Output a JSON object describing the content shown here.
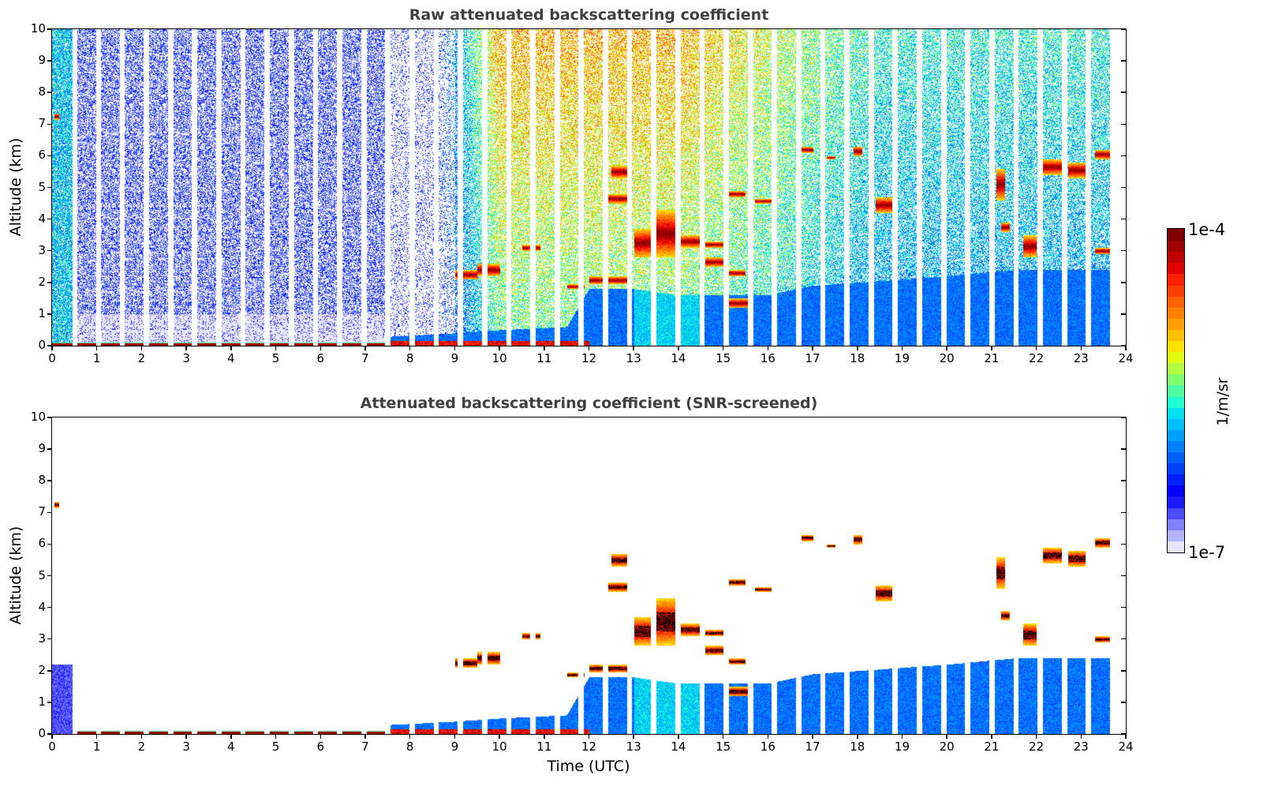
{
  "figure": {
    "panels": [
      {
        "id": "raw",
        "title": "Raw attenuated backscattering coefficient",
        "ylabel": "Altitude (km)",
        "xlabel": ""
      },
      {
        "id": "snr",
        "title": "Attenuated backscattering coefficient (SNR-screened)",
        "ylabel": "Altitude (km)",
        "xlabel": "Time (UTC)"
      }
    ],
    "colorbar": {
      "label": "1/m/sr",
      "max_label": "1e-4",
      "min_label": "1e-7",
      "colormap": "jet (with light-lavender low end)",
      "colors": [
        "#e6e6fa",
        "#b3b3ff",
        "#8080ff",
        "#4d4dff",
        "#1a1aff",
        "#0000ff",
        "#0020ff",
        "#0040ff",
        "#0060ff",
        "#0080ff",
        "#00a0ff",
        "#00c0ff",
        "#00e0f0",
        "#20ffd0",
        "#50ffa0",
        "#80ff70",
        "#b0ff40",
        "#e0ff10",
        "#ffe000",
        "#ffc000",
        "#ffa000",
        "#ff8000",
        "#ff6000",
        "#ff4000",
        "#ff2000",
        "#e00000",
        "#c00000",
        "#a00000",
        "#800000"
      ]
    }
  },
  "chart_data": [
    {
      "type": "heatmap",
      "title": "Raw attenuated backscattering coefficient",
      "xlabel": "",
      "ylabel": "Altitude (km)",
      "xlim": [
        0,
        24
      ],
      "ylim": [
        0,
        10
      ],
      "x_ticks": [
        "0",
        "1",
        "2",
        "3",
        "4",
        "5",
        "6",
        "7",
        "8",
        "9",
        "10",
        "11",
        "12",
        "13",
        "14",
        "15",
        "16",
        "17",
        "18",
        "19",
        "20",
        "21",
        "22",
        "23",
        "24"
      ],
      "y_ticks": [
        "0",
        "1",
        "2",
        "3",
        "4",
        "5",
        "6",
        "7",
        "8",
        "9",
        "10"
      ],
      "color_scale": {
        "min": 1e-07,
        "max": 0.0001,
        "scale": "log",
        "units": "1/m/sr"
      },
      "grid": false,
      "screened": false
    },
    {
      "type": "heatmap",
      "title": "Attenuated backscattering coefficient (SNR-screened)",
      "xlabel": "Time (UTC)",
      "ylabel": "Altitude (km)",
      "xlim": [
        0,
        24
      ],
      "ylim": [
        0,
        10
      ],
      "x_ticks": [
        "0",
        "1",
        "2",
        "3",
        "4",
        "5",
        "6",
        "7",
        "8",
        "9",
        "10",
        "11",
        "12",
        "13",
        "14",
        "15",
        "16",
        "17",
        "18",
        "19",
        "20",
        "21",
        "22",
        "23",
        "24"
      ],
      "y_ticks": [
        "0",
        "1",
        "2",
        "3",
        "4",
        "5",
        "6",
        "7",
        "8",
        "9",
        "10"
      ],
      "color_scale": {
        "min": 1e-07,
        "max": 0.0001,
        "scale": "log",
        "units": "1/m/sr"
      },
      "grid": false,
      "screened": true
    }
  ],
  "observations": {
    "first_block_hours": [
      0.0,
      0.45
    ],
    "block_start_hours": [
      0.55,
      1.08,
      1.62,
      2.16,
      2.7,
      3.24,
      3.78,
      4.32,
      4.86,
      5.4,
      5.94,
      6.48,
      7.02,
      7.56,
      8.1,
      8.64,
      9.18,
      9.72,
      10.26,
      10.8,
      11.34,
      11.88,
      12.42,
      12.96,
      13.5,
      14.04,
      14.58,
      15.12,
      15.66,
      16.2,
      16.74,
      17.28,
      17.82,
      18.36,
      18.9,
      19.44,
      19.98,
      20.52,
      21.06,
      21.6,
      22.14,
      22.68,
      23.22
    ],
    "block_length_hours": 0.42,
    "boundary_layer_top_km": [
      {
        "t": 0,
        "h": 0.1
      },
      {
        "t": 7,
        "h": 0.15
      },
      {
        "t": 7.6,
        "h": 0.3
      },
      {
        "t": 9,
        "h": 0.4
      },
      {
        "t": 10,
        "h": 0.5
      },
      {
        "t": 11.5,
        "h": 0.6
      },
      {
        "t": 12,
        "h": 1.8
      },
      {
        "t": 13,
        "h": 1.8
      },
      {
        "t": 14,
        "h": 1.6
      },
      {
        "t": 16,
        "h": 1.6
      },
      {
        "t": 17,
        "h": 1.9
      },
      {
        "t": 18,
        "h": 2.0
      },
      {
        "t": 20,
        "h": 2.2
      },
      {
        "t": 21.5,
        "h": 2.4
      },
      {
        "t": 23.7,
        "h": 2.4
      }
    ],
    "cloud_layers": [
      {
        "t0": 0.05,
        "t1": 0.15,
        "base_km": 7.15,
        "top_km": 7.35
      },
      {
        "t0": 9.0,
        "t1": 9.5,
        "base_km": 2.1,
        "top_km": 2.4
      },
      {
        "t0": 9.5,
        "t1": 10.0,
        "base_km": 2.2,
        "top_km": 2.6
      },
      {
        "t0": 10.5,
        "t1": 10.9,
        "base_km": 3.0,
        "top_km": 3.2
      },
      {
        "t0": 11.5,
        "t1": 11.9,
        "base_km": 1.8,
        "top_km": 1.95
      },
      {
        "t0": 12.0,
        "t1": 12.9,
        "base_km": 1.95,
        "top_km": 2.2
      },
      {
        "t0": 12.4,
        "t1": 12.9,
        "base_km": 4.5,
        "top_km": 4.8
      },
      {
        "t0": 12.5,
        "t1": 12.9,
        "base_km": 5.3,
        "top_km": 5.7
      },
      {
        "t0": 13.0,
        "t1": 13.4,
        "base_km": 2.8,
        "top_km": 3.7
      },
      {
        "t0": 13.5,
        "t1": 14.0,
        "base_km": 2.8,
        "top_km": 4.3
      },
      {
        "t0": 14.0,
        "t1": 14.5,
        "base_km": 3.1,
        "top_km": 3.5
      },
      {
        "t0": 14.6,
        "t1": 15.0,
        "base_km": 3.1,
        "top_km": 3.3
      },
      {
        "t0": 14.6,
        "t1": 15.0,
        "base_km": 2.5,
        "top_km": 2.8
      },
      {
        "t0": 15.1,
        "t1": 15.5,
        "base_km": 4.7,
        "top_km": 4.9
      },
      {
        "t0": 15.1,
        "t1": 15.5,
        "base_km": 2.2,
        "top_km": 2.4
      },
      {
        "t0": 15.1,
        "t1": 15.6,
        "base_km": 1.2,
        "top_km": 1.5
      },
      {
        "t0": 15.7,
        "t1": 16.1,
        "base_km": 4.5,
        "top_km": 4.65
      },
      {
        "t0": 16.7,
        "t1": 17.0,
        "base_km": 6.1,
        "top_km": 6.3
      },
      {
        "t0": 17.3,
        "t1": 17.5,
        "base_km": 5.9,
        "top_km": 6.0
      },
      {
        "t0": 17.9,
        "t1": 18.1,
        "base_km": 6.0,
        "top_km": 6.3
      },
      {
        "t0": 18.4,
        "t1": 18.8,
        "base_km": 4.2,
        "top_km": 4.7
      },
      {
        "t0": 21.1,
        "t1": 21.3,
        "base_km": 4.6,
        "top_km": 5.6
      },
      {
        "t0": 21.2,
        "t1": 21.4,
        "base_km": 3.6,
        "top_km": 3.9
      },
      {
        "t0": 21.7,
        "t1": 22.0,
        "base_km": 2.8,
        "top_km": 3.5
      },
      {
        "t0": 22.1,
        "t1": 22.6,
        "base_km": 5.4,
        "top_km": 5.9
      },
      {
        "t0": 22.7,
        "t1": 23.1,
        "base_km": 5.3,
        "top_km": 5.8
      },
      {
        "t0": 23.3,
        "t1": 23.7,
        "base_km": 5.9,
        "top_km": 6.2
      },
      {
        "t0": 23.3,
        "t1": 23.7,
        "base_km": 2.9,
        "top_km": 3.1
      }
    ]
  }
}
